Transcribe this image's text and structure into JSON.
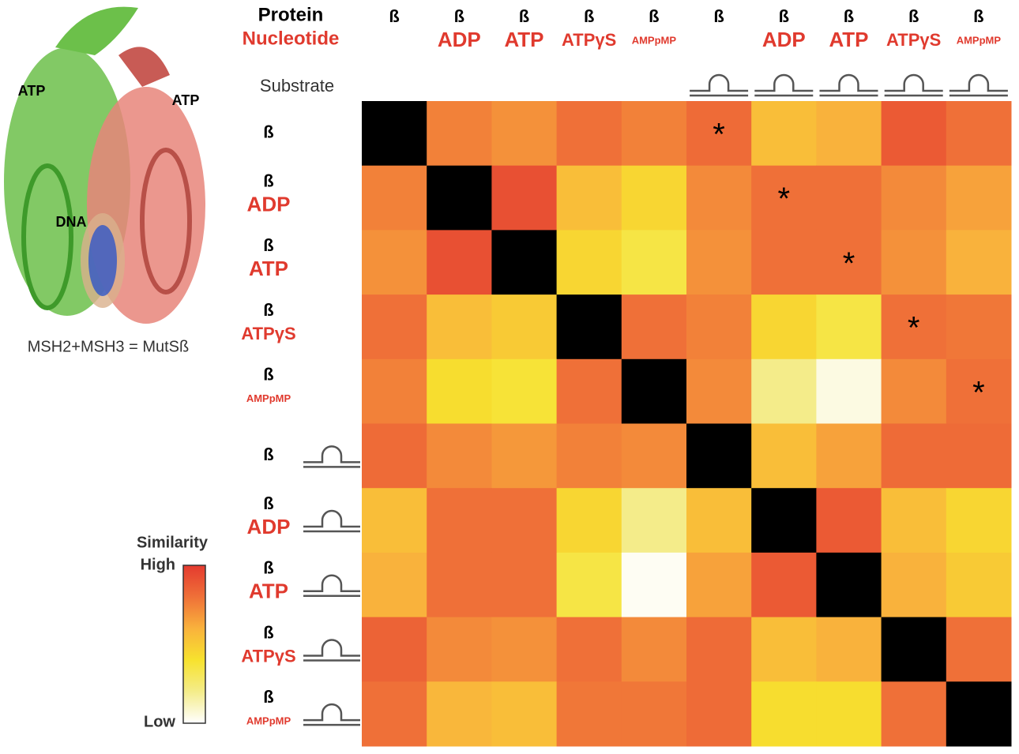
{
  "structure": {
    "labels": [
      "ATP",
      "ATP",
      "DNA"
    ],
    "caption": "MSH2+MSH3 = MutSß"
  },
  "chart_data": {
    "type": "heatmap",
    "header_labels": {
      "protein": "Protein",
      "nucleotide": "Nucleotide",
      "substrate": "Substrate"
    },
    "columns": {
      "protein": [
        "ß",
        "ß",
        "ß",
        "ß",
        "ß",
        "ß",
        "ß",
        "ß",
        "ß",
        "ß"
      ],
      "nucleotide": [
        null,
        "ADP",
        "ATP",
        "ATPγS",
        "AMPpMP",
        null,
        "ADP",
        "ATP",
        "ATPγS",
        "AMPpMP"
      ],
      "substrate": [
        false,
        false,
        false,
        false,
        false,
        true,
        true,
        true,
        true,
        true
      ]
    },
    "rows": {
      "protein": [
        "ß",
        "ß",
        "ß",
        "ß",
        "ß",
        "ß",
        "ß",
        "ß",
        "ß",
        "ß"
      ],
      "nucleotide": [
        null,
        "ADP",
        "ATP",
        "ATPγS",
        "AMPpMP",
        null,
        "ADP",
        "ATP",
        "ATPγS",
        "AMPpMP"
      ],
      "substrate": [
        false,
        false,
        false,
        false,
        false,
        true,
        true,
        true,
        true,
        true
      ]
    },
    "values": [
      [
        null,
        0.75,
        0.7,
        0.8,
        0.75,
        0.82,
        0.55,
        0.6,
        0.88,
        0.8
      ],
      [
        0.75,
        null,
        0.92,
        0.55,
        0.45,
        0.72,
        0.8,
        0.8,
        0.72,
        0.65
      ],
      [
        0.7,
        0.92,
        null,
        0.45,
        0.35,
        0.7,
        0.8,
        0.8,
        0.7,
        0.6
      ],
      [
        0.8,
        0.55,
        0.5,
        null,
        0.8,
        0.75,
        0.45,
        0.35,
        0.8,
        0.78
      ],
      [
        0.75,
        0.42,
        0.38,
        0.8,
        null,
        0.72,
        0.2,
        0.05,
        0.72,
        0.8
      ],
      [
        0.82,
        0.72,
        0.68,
        0.75,
        0.72,
        null,
        0.55,
        0.65,
        0.82,
        0.82
      ],
      [
        0.55,
        0.8,
        0.8,
        0.45,
        0.2,
        0.55,
        null,
        0.88,
        0.55,
        0.45
      ],
      [
        0.6,
        0.8,
        0.8,
        0.35,
        0.02,
        0.65,
        0.88,
        null,
        0.6,
        0.5
      ],
      [
        0.85,
        0.72,
        0.7,
        0.8,
        0.72,
        0.82,
        0.55,
        0.6,
        null,
        0.8
      ],
      [
        0.8,
        0.58,
        0.55,
        0.78,
        0.78,
        0.82,
        0.42,
        0.42,
        0.8,
        null
      ]
    ],
    "annotations": [
      {
        "row": 0,
        "col": 5,
        "text": "*"
      },
      {
        "row": 1,
        "col": 6,
        "text": "*"
      },
      {
        "row": 2,
        "col": 7,
        "text": "*"
      },
      {
        "row": 3,
        "col": 8,
        "text": "*"
      },
      {
        "row": 4,
        "col": 9,
        "text": "*"
      }
    ],
    "zlim": [
      0,
      1
    ],
    "colorscale": [
      "#ffffff",
      "#f4ec8a",
      "#f7e22e",
      "#f9b23c",
      "#ef7038",
      "#e43a2f"
    ],
    "diagonal_color": "#000000",
    "colorbar": {
      "title": "Similarity",
      "high_label": "High",
      "low_label": "Low"
    }
  }
}
